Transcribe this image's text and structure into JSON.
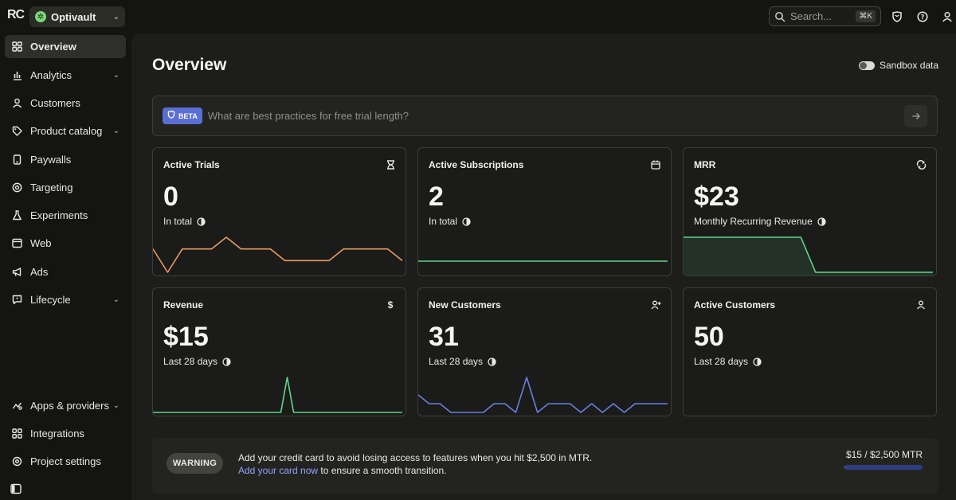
{
  "app": {
    "logo_text": "RC",
    "project_name": "Optivault",
    "search_placeholder": "Search...",
    "search_shortcut": "⌘K"
  },
  "sidebar": {
    "items": [
      {
        "label": "Overview",
        "icon": "grid-icon",
        "active": true
      },
      {
        "label": "Analytics",
        "icon": "bar-chart-icon",
        "has_chevron": true
      },
      {
        "label": "Customers",
        "icon": "user-icon"
      },
      {
        "label": "Product catalog",
        "icon": "tag-icon",
        "has_chevron": true
      },
      {
        "label": "Paywalls",
        "icon": "phone-icon"
      },
      {
        "label": "Targeting",
        "icon": "target-icon"
      },
      {
        "label": "Experiments",
        "icon": "flask-icon"
      },
      {
        "label": "Web",
        "icon": "browser-icon"
      },
      {
        "label": "Ads",
        "icon": "megaphone-icon"
      },
      {
        "label": "Lifecycle",
        "icon": "message-icon",
        "has_chevron": true
      }
    ],
    "bottom_items": [
      {
        "label": "Apps & providers",
        "icon": "apps-icon",
        "has_chevron": true
      },
      {
        "label": "Integrations",
        "icon": "grid-plus-icon"
      },
      {
        "label": "Project settings",
        "icon": "settings-icon"
      }
    ]
  },
  "main": {
    "title": "Overview",
    "sandbox_label": "Sandbox data",
    "ask": {
      "badge": "BETA",
      "placeholder": "What are best practices for free trial length?"
    },
    "cards": [
      {
        "title": "Active Trials",
        "icon": "hourglass-icon",
        "value": "0",
        "sub": "In total",
        "color": "#e79a64",
        "series": [
          2,
          0,
          2,
          2,
          2,
          3,
          2,
          2,
          2,
          1,
          1,
          1,
          1,
          2,
          2,
          2,
          2,
          1
        ]
      },
      {
        "title": "Active Subscriptions",
        "icon": "calendar-icon",
        "value": "2",
        "sub": "In total",
        "color": "#5fd68a",
        "series": [
          2,
          2,
          2,
          2,
          2,
          2,
          2,
          2,
          2,
          2,
          2,
          2,
          2,
          2,
          2,
          2,
          2,
          2
        ]
      },
      {
        "title": "MRR",
        "icon": "refresh-icon",
        "value": "$23",
        "sub": "Monthly Recurring Revenue",
        "color": "#5fd68a",
        "series": [
          23,
          23,
          23,
          23,
          23,
          23,
          23,
          23,
          23,
          0,
          0,
          0,
          0,
          0,
          0,
          0,
          0,
          0
        ]
      },
      {
        "title": "Revenue",
        "icon": "dollar-icon",
        "value": "$15",
        "sub": "Last 28 days",
        "color": "#5fd68a",
        "series": [
          0,
          0,
          0,
          0,
          0,
          0,
          0,
          0,
          0,
          0,
          0,
          0,
          0,
          0,
          0,
          0,
          0,
          0,
          0,
          0,
          0,
          15,
          0,
          0,
          0,
          0,
          0,
          0,
          0,
          0,
          0,
          0,
          0,
          0,
          0,
          0,
          0,
          0,
          0,
          0
        ]
      },
      {
        "title": "New Customers",
        "icon": "user-plus-icon",
        "value": "31",
        "sub": "Last 28 days",
        "color": "#6b7fe3",
        "series": [
          2,
          1,
          1,
          0,
          0,
          0,
          0,
          1,
          1,
          0,
          4,
          0,
          1,
          1,
          1,
          0,
          1,
          0,
          1,
          0,
          1,
          1,
          1,
          1
        ]
      },
      {
        "title": "Active Customers",
        "icon": "user-icon",
        "value": "50",
        "sub": "Last 28 days",
        "color": "#5fd68a",
        "series": []
      }
    ]
  },
  "warning": {
    "badge": "WARNING",
    "line1": "Add your credit card to avoid losing access to features when you hit $2,500 in MTR.",
    "link": "Add your card now",
    "line2": " to ensure a smooth transition.",
    "usage": "$15 / $2,500 MTR",
    "usage_fraction": 0.006
  }
}
